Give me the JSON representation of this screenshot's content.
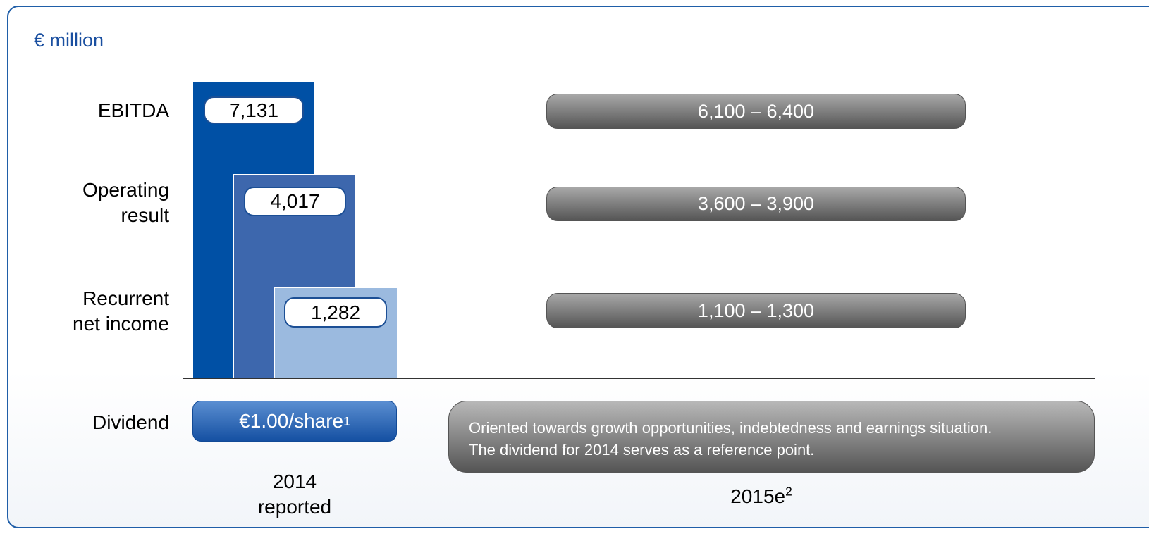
{
  "unit": "€ million",
  "rows": [
    {
      "label": [
        "EBITDA"
      ],
      "reported": "7,131",
      "outlook": "6,100 – 6,400"
    },
    {
      "label": [
        "Operating",
        "result"
      ],
      "reported": "4,017",
      "outlook": "3,600 – 3,900"
    },
    {
      "label": [
        "Recurrent",
        "net income"
      ],
      "reported": "1,282",
      "outlook": "1,100 – 1,300"
    }
  ],
  "dividend": {
    "label": "Dividend",
    "reported": "€1.00/share",
    "reported_note": "1",
    "outlook": [
      "Oriented towards growth opportunities, indebtedness and earnings situation.",
      "The dividend for 2014 serves as a reference point."
    ]
  },
  "columns": {
    "reported": [
      "2014",
      "reported"
    ],
    "outlook": "2015e",
    "outlook_note": "2"
  }
}
